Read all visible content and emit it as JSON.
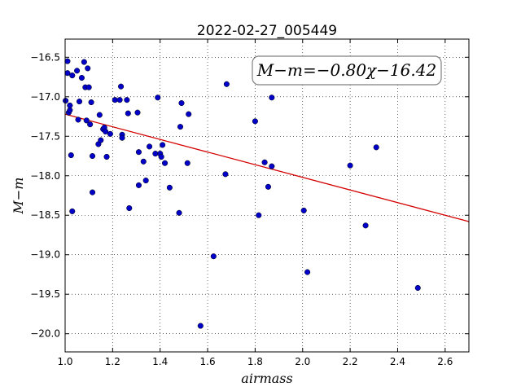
{
  "chart_data": {
    "type": "scatter",
    "title": "2022-02-27_005449",
    "xlabel": "airmass",
    "ylabel": "M−m",
    "xlim": [
      1.0,
      2.7
    ],
    "ylim": [
      -20.23,
      -16.27
    ],
    "y_inverted": false,
    "grid": true,
    "xticks": [
      1.0,
      1.2,
      1.4,
      1.6,
      1.8,
      2.0,
      2.2,
      2.4,
      2.6
    ],
    "xtick_labels": [
      "1.0",
      "1.2",
      "1.4",
      "1.6",
      "1.8",
      "2.0",
      "2.2",
      "2.4",
      "2.6"
    ],
    "yticks": [
      -16.5,
      -17.0,
      -17.5,
      -18.0,
      -18.5,
      -19.0,
      -19.5,
      -20.0
    ],
    "ytick_labels": [
      "−16.5",
      "−17.0",
      "−17.5",
      "−18.0",
      "−18.5",
      "−19.0",
      "−19.5",
      "−20.0"
    ],
    "annotation": "M−m=−0.80χ−16.42",
    "fit": {
      "slope": -0.8,
      "intercept": -16.42,
      "color": "#d40000"
    },
    "marker_color": "#0000c8",
    "points": [
      [
        1.002,
        -17.05
      ],
      [
        1.01,
        -16.55
      ],
      [
        1.01,
        -16.7
      ],
      [
        1.015,
        -17.2
      ],
      [
        1.02,
        -17.17
      ],
      [
        1.02,
        -17.11
      ],
      [
        1.025,
        -17.74
      ],
      [
        1.03,
        -16.73
      ],
      [
        1.03,
        -18.45
      ],
      [
        1.05,
        -16.67
      ],
      [
        1.055,
        -17.29
      ],
      [
        1.06,
        -17.06
      ],
      [
        1.07,
        -16.76
      ],
      [
        1.08,
        -16.56
      ],
      [
        1.085,
        -16.88
      ],
      [
        1.09,
        -17.3
      ],
      [
        1.095,
        -16.64
      ],
      [
        1.1,
        -16.88
      ],
      [
        1.105,
        -17.35
      ],
      [
        1.11,
        -17.07
      ],
      [
        1.115,
        -17.75
      ],
      [
        1.115,
        -18.21
      ],
      [
        1.14,
        -17.6
      ],
      [
        1.145,
        -17.23
      ],
      [
        1.15,
        -17.55
      ],
      [
        1.16,
        -17.41
      ],
      [
        1.165,
        -17.39
      ],
      [
        1.17,
        -17.44
      ],
      [
        1.175,
        -17.76
      ],
      [
        1.19,
        -17.47
      ],
      [
        1.21,
        -17.04
      ],
      [
        1.23,
        -17.04
      ],
      [
        1.235,
        -16.87
      ],
      [
        1.24,
        -17.48
      ],
      [
        1.24,
        -17.52
      ],
      [
        1.26,
        -17.04
      ],
      [
        1.265,
        -17.21
      ],
      [
        1.27,
        -18.41
      ],
      [
        1.305,
        -17.2
      ],
      [
        1.31,
        -17.7
      ],
      [
        1.31,
        -18.12
      ],
      [
        1.33,
        -17.82
      ],
      [
        1.34,
        -18.06
      ],
      [
        1.355,
        -17.63
      ],
      [
        1.38,
        -17.72
      ],
      [
        1.39,
        -17.01
      ],
      [
        1.4,
        -17.72
      ],
      [
        1.405,
        -17.76
      ],
      [
        1.41,
        -17.61
      ],
      [
        1.42,
        -17.84
      ],
      [
        1.44,
        -18.15
      ],
      [
        1.48,
        -18.47
      ],
      [
        1.485,
        -17.38
      ],
      [
        1.49,
        -17.08
      ],
      [
        1.515,
        -17.84
      ],
      [
        1.52,
        -17.22
      ],
      [
        1.57,
        -19.9
      ],
      [
        1.625,
        -19.02
      ],
      [
        1.675,
        -17.98
      ],
      [
        1.68,
        -16.84
      ],
      [
        1.8,
        -17.31
      ],
      [
        1.815,
        -18.5
      ],
      [
        1.84,
        -17.83
      ],
      [
        1.855,
        -18.14
      ],
      [
        1.87,
        -17.88
      ],
      [
        1.87,
        -17.01
      ],
      [
        2.005,
        -18.44
      ],
      [
        2.02,
        -19.22
      ],
      [
        2.2,
        -17.87
      ],
      [
        2.265,
        -18.63
      ],
      [
        2.31,
        -17.64
      ],
      [
        2.485,
        -19.42
      ]
    ]
  }
}
